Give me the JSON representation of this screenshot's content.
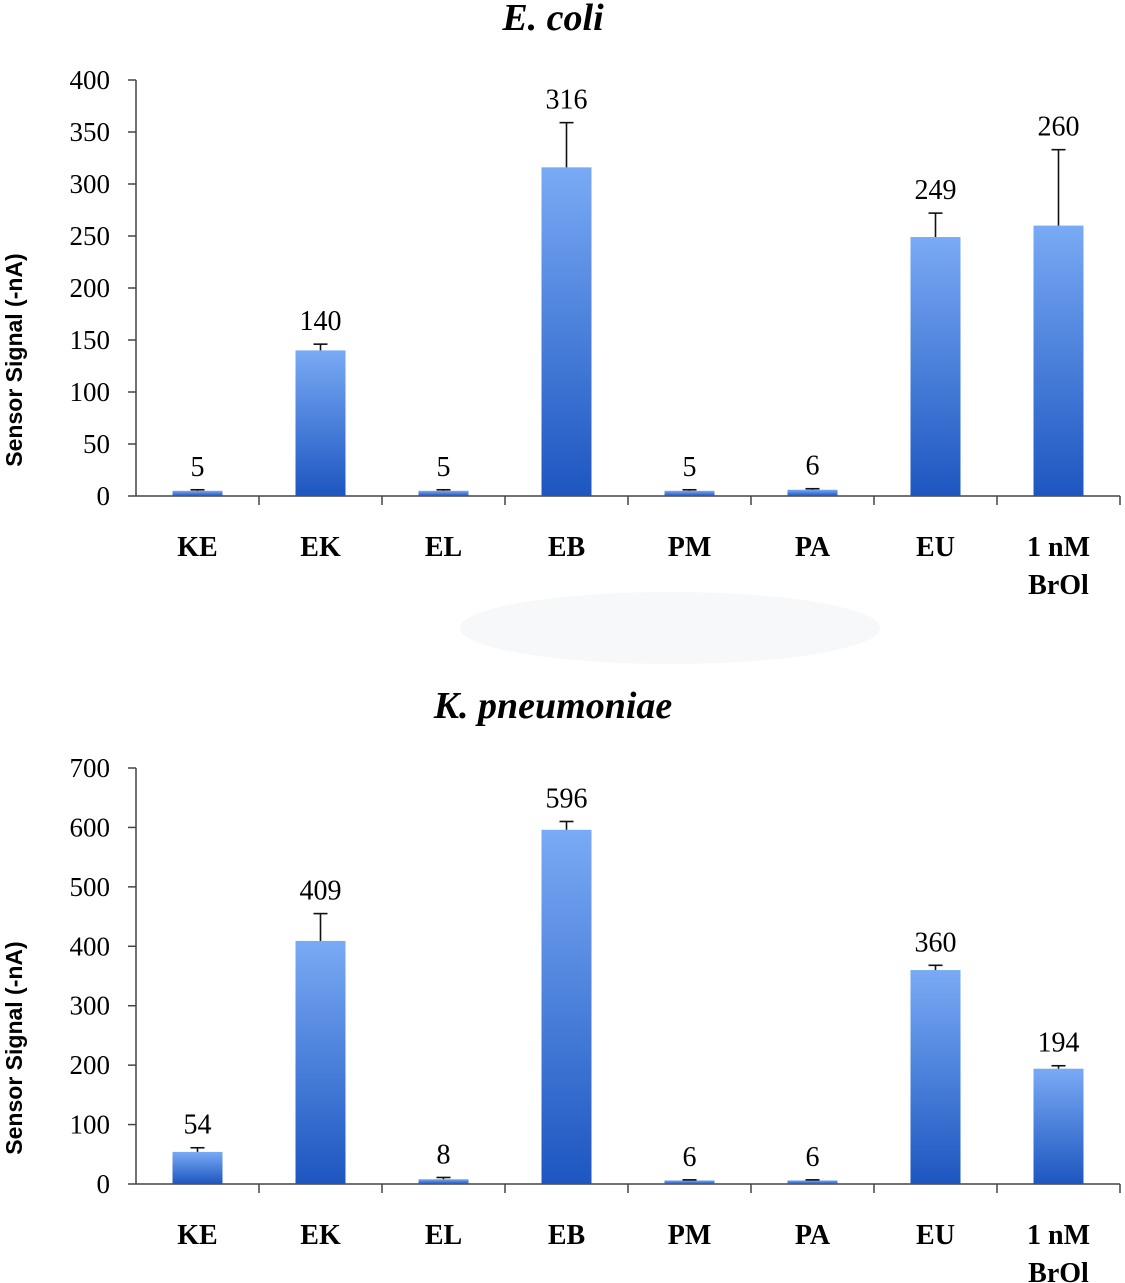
{
  "chart_data": [
    {
      "type": "bar",
      "title": "E. coli",
      "ylabel": "Sensor Signal (-nA)",
      "ylim": [
        0,
        400
      ],
      "yticks": [
        0,
        50,
        100,
        150,
        200,
        250,
        300,
        350,
        400
      ],
      "categories": [
        [
          "KE"
        ],
        [
          "EK"
        ],
        [
          "EL"
        ],
        [
          "EB"
        ],
        [
          "PM"
        ],
        [
          "PA"
        ],
        [
          "EU"
        ],
        [
          "1 nM",
          "BrOl"
        ]
      ],
      "values": [
        5,
        140,
        5,
        316,
        5,
        6,
        249,
        260
      ],
      "value_labels": [
        "5",
        "140",
        "5",
        "316",
        "5",
        "6",
        "249",
        "260"
      ],
      "errors": [
        1,
        6,
        1,
        43,
        1,
        1,
        23,
        73
      ],
      "bar_color_top": "#79aaf5",
      "bar_color_bottom": "#1d56c0"
    },
    {
      "type": "bar",
      "title": "K. pneumoniae",
      "ylabel": "Sensor Signal (-nA)",
      "ylim": [
        0,
        700
      ],
      "yticks": [
        0,
        100,
        200,
        300,
        400,
        500,
        600,
        700
      ],
      "categories": [
        [
          "KE"
        ],
        [
          "EK"
        ],
        [
          "EL"
        ],
        [
          "EB"
        ],
        [
          "PM"
        ],
        [
          "PA"
        ],
        [
          "EU"
        ],
        [
          "1 nM",
          "BrOl"
        ]
      ],
      "values": [
        54,
        409,
        8,
        596,
        6,
        6,
        360,
        194
      ],
      "value_labels": [
        "54",
        "409",
        "8",
        "596",
        "6",
        "6",
        "360",
        "194"
      ],
      "errors": [
        7,
        46,
        3,
        14,
        1,
        1,
        8,
        5
      ],
      "bar_color_top": "#79aaf5",
      "bar_color_bottom": "#1d56c0"
    }
  ]
}
